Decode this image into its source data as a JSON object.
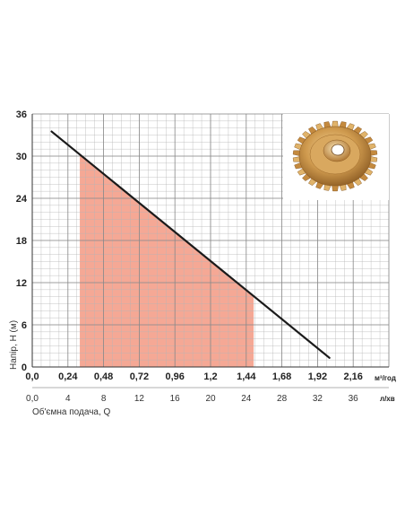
{
  "chart_data": {
    "type": "line",
    "title": "",
    "ylabel": "Напір, H (м)",
    "xlabel": "Об'ємна подача, Q",
    "x_unit_top": "м³/год",
    "x_unit_bottom": "л/хв",
    "ylim": [
      0,
      36
    ],
    "y_ticks": [
      "0",
      "6",
      "12",
      "18",
      "24",
      "30",
      "36"
    ],
    "xlim_m3h": [
      0,
      2.4
    ],
    "x_ticks_m3h": [
      "0,0",
      "0,24",
      "0,48",
      "0,72",
      "0,96",
      "1,2",
      "1,44",
      "1,68",
      "1,92",
      "2,16"
    ],
    "x_ticks_lmin": [
      "0,0",
      "4",
      "8",
      "12",
      "16",
      "20",
      "24",
      "28",
      "32",
      "36"
    ],
    "grid": true,
    "series": [
      {
        "x": [
          0.13,
          2.0
        ],
        "y": [
          33.5,
          1.3
        ]
      }
    ],
    "highlight_range_m3h": [
      0.32,
      1.49
    ],
    "colors": {
      "line": "#1a1a1a",
      "fill": "#f4a38f",
      "grid": "#aaaaaa"
    },
    "inset_image": "brass-impeller"
  }
}
